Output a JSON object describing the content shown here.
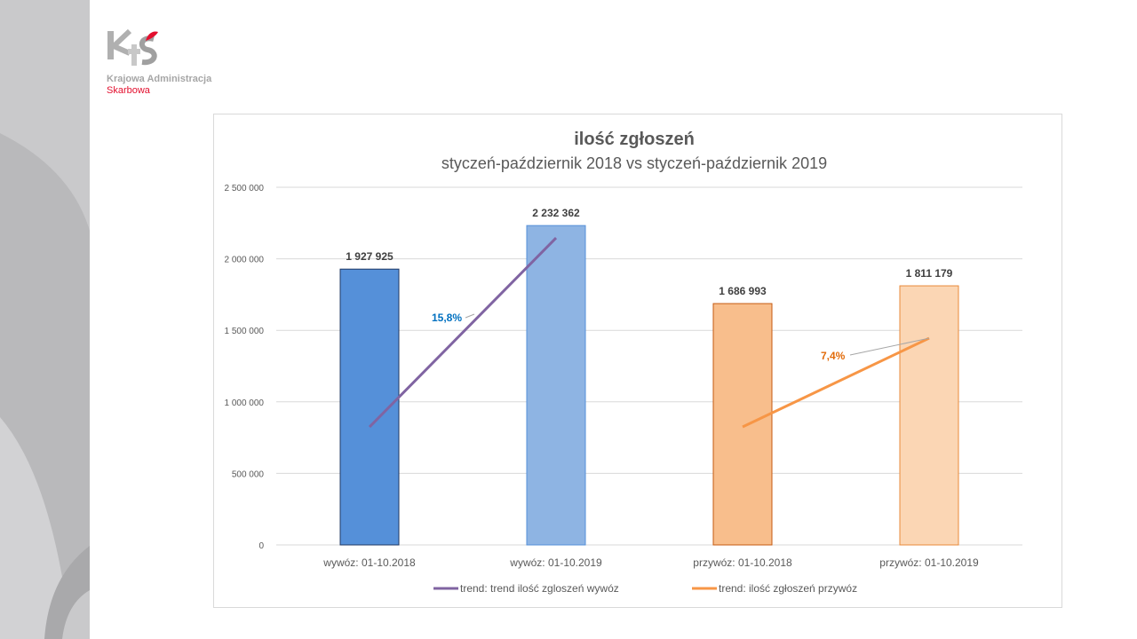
{
  "logo": {
    "line1": "Krajowa Administracja",
    "line2": "Skarbowa"
  },
  "colors": {
    "bar1": "#5590d9",
    "bar2": "#8eb4e3",
    "bar3": "#f8be8c",
    "bar4": "#fbd6b4",
    "trend_wywoz": "#8064a2",
    "trend_przywoz": "#f79646"
  },
  "chart_data": {
    "type": "bar",
    "title": "ilość zgłoszeń",
    "subtitle": "styczeń-październik 2018  vs  styczeń-październik 2019",
    "categories": [
      "wywóz: 01-10.2018",
      "wywóz: 01-10.2019",
      "przywóz: 01-10.2018",
      "przywóz: 01-10.2019"
    ],
    "values": [
      1927925,
      2232362,
      1686993,
      1811179
    ],
    "value_labels": [
      "1 927 925",
      "2 232 362",
      "1 686 993",
      "1 811 179"
    ],
    "ylim": [
      0,
      2500000
    ],
    "yticks": [
      0,
      500000,
      1000000,
      1500000,
      2000000,
      2500000
    ],
    "ytick_labels": [
      "0",
      "500 000",
      "1 000 000",
      "1 500 000",
      "2 000 000",
      "2 500 000"
    ],
    "grid": true,
    "trendlines": [
      {
        "name": "trend: trend ilość zgloszeń wywóz",
        "from_category": 0,
        "to_category": 1,
        "y": [
          825000,
          2146000
        ],
        "label": "15,8%"
      },
      {
        "name": "trend: ilość zgłoszeń przywóz",
        "from_category": 2,
        "to_category": 3,
        "y": [
          825000,
          1445000
        ],
        "label": "7,4%"
      }
    ],
    "legend": "bottom"
  }
}
